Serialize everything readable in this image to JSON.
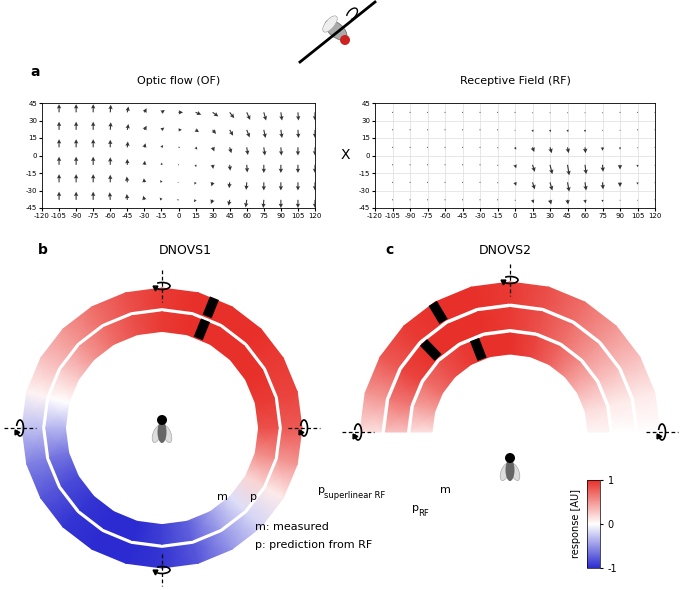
{
  "chart_data": [
    {
      "type": "quiver",
      "panel": "a",
      "title": "Optic flow (OF)",
      "color": "#333333",
      "grid": false,
      "x": [
        -105,
        -90,
        -75,
        -60,
        -45,
        -30,
        -15,
        0,
        15,
        30,
        45,
        60,
        75,
        90,
        105,
        120
      ],
      "y": [
        37,
        22,
        7,
        -8,
        -23,
        -38
      ],
      "u": [
        [
          0,
          0,
          0,
          0.5,
          1,
          2,
          3,
          4,
          5,
          5,
          4,
          3,
          2,
          1,
          0.5,
          0
        ],
        [
          0,
          0,
          0,
          0.5,
          1,
          2,
          2.5,
          3,
          3,
          3,
          3,
          2.5,
          1.5,
          1,
          0.5,
          0
        ],
        [
          0,
          0,
          0,
          0,
          0.5,
          1,
          1.5,
          1.5,
          1.5,
          1.5,
          1.5,
          1,
          1,
          0.5,
          0,
          0
        ],
        [
          0,
          0,
          0,
          0,
          0,
          0.5,
          0.5,
          0.5,
          0.5,
          0.5,
          0.5,
          0.5,
          0,
          0,
          0,
          0
        ],
        [
          0,
          0,
          0,
          0,
          -0.5,
          -0.5,
          -1,
          -1,
          -1,
          -1,
          -0.5,
          -0.5,
          0,
          0,
          0,
          0
        ],
        [
          0,
          0,
          0,
          -0.5,
          -0.5,
          -1,
          -1.5,
          -1.5,
          -1.5,
          -1.5,
          -1,
          -1,
          -0.5,
          0,
          0,
          0
        ]
      ],
      "v": [
        [
          7,
          7,
          7,
          6.5,
          5,
          3.5,
          2,
          0,
          -2,
          -3.5,
          -5,
          -6.5,
          -7,
          -7,
          -7,
          -7
        ],
        [
          7,
          7,
          7,
          6.5,
          5,
          3.5,
          2,
          0,
          -2,
          -3.5,
          -5,
          -6.5,
          -7,
          -7,
          -7,
          -7
        ],
        [
          7,
          7,
          7,
          6.5,
          5,
          3.5,
          2,
          0,
          -2,
          -3.5,
          -5,
          -6.5,
          -7,
          -7,
          -7,
          -7
        ],
        [
          7,
          7,
          7,
          6.5,
          5,
          3.5,
          2,
          0,
          -2,
          -3.5,
          -5,
          -6.5,
          -7,
          -7,
          -7,
          -7
        ],
        [
          7,
          7,
          7,
          6.5,
          5,
          3.5,
          2,
          0,
          -2,
          -3.5,
          -5,
          -6.5,
          -7,
          -7,
          -7,
          -7
        ],
        [
          7,
          7,
          7,
          6.5,
          5,
          3.5,
          2,
          0,
          -2,
          -3.5,
          -5,
          -6.5,
          -7,
          -7,
          -7,
          -7
        ]
      ],
      "xlim": [
        -120,
        120
      ],
      "ylim": [
        -45,
        45
      ],
      "xticks": [
        -120,
        -105,
        -90,
        -75,
        -60,
        -45,
        -30,
        -15,
        0,
        15,
        30,
        45,
        60,
        75,
        90,
        105,
        120
      ],
      "yticks": [
        -45,
        -30,
        -15,
        0,
        15,
        30,
        45
      ]
    },
    {
      "type": "quiver",
      "panel": null,
      "title": "Receptive Field (RF)",
      "color": "#333333",
      "grid": true,
      "x": [
        -105,
        -90,
        -75,
        -60,
        -45,
        -30,
        -15,
        0,
        15,
        30,
        45,
        60,
        75,
        90,
        105,
        120
      ],
      "y": [
        37,
        22,
        7,
        -8,
        -23,
        -38
      ],
      "u": [
        [
          0,
          0,
          0,
          0,
          0,
          0,
          0,
          0,
          0,
          0,
          0,
          0,
          0,
          0,
          0,
          0
        ],
        [
          0,
          0,
          0,
          0,
          0,
          0,
          0,
          0,
          0.5,
          0.5,
          0.5,
          0,
          0,
          0,
          0,
          0
        ],
        [
          0,
          0,
          0,
          0,
          0,
          0,
          0.5,
          1,
          1.5,
          1.5,
          1,
          0.5,
          0,
          0,
          0,
          0
        ],
        [
          0,
          0,
          0,
          0,
          0,
          0,
          0.5,
          1,
          2,
          2,
          1.5,
          1,
          0.5,
          0,
          0,
          0
        ],
        [
          0,
          0,
          0,
          0,
          0,
          0,
          0.5,
          1,
          2,
          2,
          1.5,
          1,
          0.5,
          0,
          0,
          0
        ],
        [
          0,
          0,
          0,
          0,
          0,
          0,
          0,
          0.5,
          1,
          1,
          0.5,
          0.5,
          0,
          0,
          0,
          0
        ]
      ],
      "v": [
        [
          0,
          0,
          0,
          0,
          0,
          0,
          0,
          0,
          -1,
          -1,
          -1,
          -1,
          -1,
          0,
          0,
          0
        ],
        [
          0,
          0,
          0,
          0,
          0,
          0,
          0,
          -1,
          -2,
          -2,
          -2,
          -2,
          -1,
          -1,
          0,
          0
        ],
        [
          0,
          0,
          0,
          0,
          0,
          0,
          -1,
          -2,
          -4,
          -5,
          -5,
          -5,
          -3,
          -2,
          -1,
          0
        ],
        [
          0,
          0,
          0,
          0,
          0,
          0,
          -1,
          -3,
          -6,
          -8,
          -9,
          -8,
          -6,
          -4,
          -2,
          -1
        ],
        [
          0,
          0,
          0,
          0,
          0,
          0,
          -1,
          -3,
          -6,
          -7,
          -8,
          -7,
          -6,
          -4,
          -2,
          -1
        ],
        [
          0,
          0,
          0,
          0,
          0,
          0,
          0,
          -1,
          -3,
          -4,
          -4,
          -3,
          -2,
          -1,
          -1,
          0
        ]
      ],
      "xlim": [
        -120,
        120
      ],
      "ylim": [
        -45,
        45
      ],
      "xticks": [
        -120,
        -105,
        -90,
        -75,
        -60,
        -45,
        -30,
        -15,
        0,
        15,
        30,
        45,
        60,
        75,
        90,
        105,
        120
      ],
      "yticks": [
        -45,
        -30,
        -15,
        0,
        15,
        30,
        45
      ]
    },
    {
      "type": "ring",
      "panel": "b",
      "title": "DNOVS1",
      "series": [
        {
          "name": "p",
          "angles": [
            0,
            15,
            30,
            45,
            60,
            75,
            90,
            105,
            120,
            135,
            150,
            165,
            180,
            195,
            210,
            225,
            240,
            255,
            270,
            285,
            300,
            315,
            330,
            345
          ],
          "values": [
            0.8,
            0.9,
            0.95,
            1,
            1,
            1,
            0.95,
            0.85,
            0.7,
            0.5,
            0.3,
            0.05,
            -0.3,
            -0.6,
            -0.8,
            -0.95,
            -1,
            -1,
            -0.95,
            -0.8,
            -0.5,
            -0.2,
            0.1,
            0.5
          ],
          "peak_angle": 68
        },
        {
          "name": "m",
          "angles": [
            0,
            15,
            30,
            45,
            60,
            75,
            90,
            105,
            120,
            135,
            150,
            165,
            180,
            195,
            210,
            225,
            240,
            255,
            270,
            285,
            300,
            315,
            330,
            345
          ],
          "values": [
            0.85,
            0.95,
            1,
            1,
            1,
            1,
            0.95,
            0.85,
            0.7,
            0.5,
            0.25,
            0,
            -0.35,
            -0.65,
            -0.85,
            -0.95,
            -1,
            -1,
            -0.9,
            -0.75,
            -0.45,
            -0.15,
            0.2,
            0.55
          ],
          "peak_angle": 68
        }
      ]
    },
    {
      "type": "ring",
      "panel": "c",
      "title": "DNOVS2",
      "series": [
        {
          "name": "p",
          "subscript": "superlinear RF",
          "angles": [
            0,
            15,
            30,
            45,
            60,
            75,
            90,
            105,
            120,
            135,
            150,
            165,
            180
          ],
          "values": [
            0,
            0.1,
            0.3,
            0.5,
            0.7,
            0.85,
            0.95,
            1,
            1,
            0.95,
            0.8,
            0.5,
            0.15
          ],
          "peak_angle": 121
        },
        {
          "name": "p",
          "subscript": "RF",
          "angles": [
            0,
            15,
            30,
            45,
            60,
            75,
            90,
            105,
            120,
            135,
            150,
            165,
            180
          ],
          "values": [
            0,
            0.1,
            0.3,
            0.5,
            0.7,
            0.85,
            0.95,
            1,
            1,
            1,
            0.9,
            0.65,
            0.3
          ],
          "peak_angle": 134
        },
        {
          "name": "m",
          "angles": [
            0,
            15,
            30,
            45,
            60,
            75,
            90,
            105,
            120,
            135,
            150,
            165,
            180
          ],
          "values": [
            0.05,
            0.15,
            0.35,
            0.55,
            0.75,
            0.9,
            1,
            1,
            0.95,
            0.85,
            0.7,
            0.45,
            0.15
          ],
          "peak_angle": 111
        }
      ]
    }
  ],
  "operator": "X",
  "notes": [
    "m: measured",
    "p: prediction from RF"
  ],
  "colorbar": {
    "label": "response [AU]",
    "range": [
      -1,
      1
    ],
    "ticks": [
      1,
      0,
      -1
    ],
    "colors": [
      "#2b2bd1",
      "#ffffff",
      "#e8302a"
    ]
  }
}
